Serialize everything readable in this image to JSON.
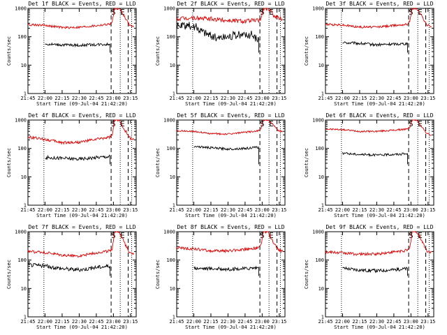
{
  "figure": {
    "background": "#ffffff",
    "axis_color": "#000000",
    "series_colors": {
      "events": "#000000",
      "lld": "#e00000"
    }
  },
  "chart_data": [
    {
      "type": "line",
      "title": "Det 1f BLACK = Events, RED = LLD",
      "xlabel": "Start Time (09-Jul-04 21:42:20)",
      "ylabel": "Counts/sec",
      "y_scale": "log",
      "ylim": [
        1,
        1000
      ],
      "xlim": [
        "21:45",
        "23:20"
      ],
      "x_ticks": [
        "21:45",
        "22:00",
        "22:15",
        "22:30",
        "22:45",
        "23:00",
        "23:15"
      ],
      "y_ticks": [
        "1",
        "10",
        "100",
        "1000"
      ],
      "markers": {
        "start": "S",
        "end": "E"
      },
      "marker_times": {
        "s": "23:00",
        "e": "23:08",
        "end_dashes": [
          "22:58",
          "23:13"
        ],
        "dotted": [
          "21:59",
          "23:06",
          "23:16"
        ]
      },
      "grid": false,
      "series": [
        {
          "key": "events",
          "x": [
            "22:00",
            "22:15",
            "22:30",
            "22:45",
            "22:57"
          ],
          "values": [
            55,
            52,
            50,
            53,
            55
          ],
          "noise": 0.05
        },
        {
          "key": "lld",
          "x": [
            "21:45",
            "22:00",
            "22:15",
            "22:30",
            "22:45",
            "22:57",
            "22:59",
            "23:01",
            "23:05",
            "23:10",
            "23:14",
            "23:18"
          ],
          "values": [
            270,
            255,
            210,
            215,
            245,
            280,
            330,
            1000,
            1000,
            500,
            260,
            220
          ],
          "noise": 0.04
        }
      ]
    },
    {
      "type": "line",
      "title": "Det 2f BLACK = Events, RED = LLD",
      "xlabel": "Start Time (09-Jul-04 21:42:20)",
      "ylabel": "Counts/sec",
      "y_scale": "log",
      "ylim": [
        1,
        1000
      ],
      "xlim": [
        "21:45",
        "23:20"
      ],
      "x_ticks": [
        "21:45",
        "22:00",
        "22:15",
        "22:30",
        "22:45",
        "23:00",
        "23:15"
      ],
      "y_ticks": [
        "1",
        "10",
        "100",
        "1000"
      ],
      "markers": {
        "start": "S",
        "end": "E"
      },
      "marker_times": {
        "s": "23:00",
        "e": "23:08",
        "end_dashes": [
          "22:58",
          "23:13"
        ],
        "dotted": [
          "21:59",
          "23:06",
          "23:16"
        ]
      },
      "grid": false,
      "series": [
        {
          "key": "events",
          "x": [
            "21:45",
            "22:00",
            "22:10",
            "22:20",
            "22:35",
            "22:50",
            "22:57"
          ],
          "values": [
            230,
            240,
            140,
            90,
            110,
            120,
            80
          ],
          "noise": 0.15
        },
        {
          "key": "lld",
          "x": [
            "21:45",
            "22:00",
            "22:15",
            "22:30",
            "22:45",
            "22:57",
            "22:59",
            "23:01",
            "23:05",
            "23:10",
            "23:14",
            "23:18"
          ],
          "values": [
            420,
            460,
            420,
            380,
            360,
            380,
            430,
            1000,
            1000,
            600,
            480,
            420
          ],
          "noise": 0.08
        }
      ]
    },
    {
      "type": "line",
      "title": "Det 3f BLACK = Events, RED = LLD",
      "xlabel": "Start Time (09-Jul-04 21:42:20)",
      "ylabel": "Counts/sec",
      "y_scale": "log",
      "ylim": [
        1,
        1000
      ],
      "xlim": [
        "21:45",
        "23:20"
      ],
      "x_ticks": [
        "21:45",
        "22:00",
        "22:15",
        "22:30",
        "22:45",
        "23:00",
        "23:15"
      ],
      "y_ticks": [
        "1",
        "10",
        "100",
        "1000"
      ],
      "markers": {
        "start": "S",
        "end": "E"
      },
      "marker_times": {
        "s": "23:00",
        "e": "23:08",
        "end_dashes": [
          "22:58",
          "23:13"
        ],
        "dotted": [
          "21:59",
          "23:06",
          "23:16"
        ]
      },
      "grid": false,
      "series": [
        {
          "key": "events",
          "x": [
            "22:00",
            "22:15",
            "22:30",
            "22:45",
            "22:57"
          ],
          "values": [
            62,
            58,
            52,
            55,
            58
          ],
          "noise": 0.05
        },
        {
          "key": "lld",
          "x": [
            "21:45",
            "22:00",
            "22:15",
            "22:30",
            "22:45",
            "22:57",
            "22:59",
            "23:01",
            "23:05",
            "23:10",
            "23:14",
            "23:18"
          ],
          "values": [
            270,
            260,
            220,
            220,
            250,
            280,
            340,
            1000,
            1000,
            500,
            260,
            230
          ],
          "noise": 0.04
        }
      ]
    },
    {
      "type": "line",
      "title": "Det 4f BLACK = Events, RED = LLD",
      "xlabel": "Start Time (09-Jul-04 21:42:20)",
      "ylabel": "Counts/sec",
      "y_scale": "log",
      "ylim": [
        1,
        1000
      ],
      "xlim": [
        "21:45",
        "23:20"
      ],
      "x_ticks": [
        "21:45",
        "22:00",
        "22:15",
        "22:30",
        "22:45",
        "23:00",
        "23:15"
      ],
      "y_ticks": [
        "1",
        "10",
        "100",
        "1000"
      ],
      "markers": {
        "start": "S",
        "end": "E"
      },
      "marker_times": {
        "s": "23:00",
        "e": "23:08",
        "end_dashes": [
          "22:58",
          "23:13"
        ],
        "dotted": [
          "21:59",
          "23:06",
          "23:16"
        ]
      },
      "grid": false,
      "series": [
        {
          "key": "events",
          "x": [
            "22:00",
            "22:15",
            "22:30",
            "22:45",
            "22:57"
          ],
          "values": [
            48,
            45,
            42,
            48,
            52
          ],
          "noise": 0.06
        },
        {
          "key": "lld",
          "x": [
            "21:45",
            "22:00",
            "22:15",
            "22:30",
            "22:45",
            "22:57",
            "22:59",
            "23:01",
            "23:05",
            "23:10",
            "23:14",
            "23:18"
          ],
          "values": [
            250,
            210,
            160,
            165,
            210,
            250,
            300,
            1000,
            1000,
            450,
            240,
            200
          ],
          "noise": 0.05
        }
      ]
    },
    {
      "type": "line",
      "title": "Det 5f BLACK = Events, RED = LLD",
      "xlabel": "Start Time (09-Jul-04 21:42:20)",
      "ylabel": "Counts/sec",
      "y_scale": "log",
      "ylim": [
        1,
        1000
      ],
      "xlim": [
        "21:45",
        "23:20"
      ],
      "x_ticks": [
        "21:45",
        "22:00",
        "22:15",
        "22:30",
        "22:45",
        "23:00",
        "23:15"
      ],
      "y_ticks": [
        "1",
        "10",
        "100",
        "1000"
      ],
      "markers": {
        "start": "S",
        "end": "E"
      },
      "marker_times": {
        "s": "23:00",
        "e": "23:08",
        "end_dashes": [
          "22:58",
          "23:13"
        ],
        "dotted": [
          "21:59",
          "23:06",
          "23:16"
        ]
      },
      "grid": false,
      "series": [
        {
          "key": "events",
          "x": [
            "22:00",
            "22:15",
            "22:30",
            "22:45",
            "22:57"
          ],
          "values": [
            118,
            105,
            95,
            100,
            110
          ],
          "noise": 0.04
        },
        {
          "key": "lld",
          "x": [
            "21:45",
            "22:00",
            "22:15",
            "22:30",
            "22:45",
            "22:57",
            "22:59",
            "23:01",
            "23:05",
            "23:10",
            "23:14",
            "23:18"
          ],
          "values": [
            420,
            400,
            330,
            320,
            370,
            420,
            500,
            1000,
            1000,
            650,
            430,
            380
          ],
          "noise": 0.03
        }
      ]
    },
    {
      "type": "line",
      "title": "Det 6f BLACK = Events, RED = LLD",
      "xlabel": "Start Time (09-Jul-04 21:42:20)",
      "ylabel": "Counts/sec",
      "y_scale": "log",
      "ylim": [
        1,
        1000
      ],
      "xlim": [
        "21:45",
        "23:20"
      ],
      "x_ticks": [
        "21:45",
        "22:00",
        "22:15",
        "22:30",
        "22:45",
        "23:00",
        "23:15"
      ],
      "y_ticks": [
        "1",
        "10",
        "100",
        "1000"
      ],
      "markers": {
        "start": "S",
        "end": "E"
      },
      "marker_times": {
        "s": "23:00",
        "e": "23:08",
        "end_dashes": [
          "22:58",
          "23:13"
        ],
        "dotted": [
          "21:59",
          "23:06",
          "23:16"
        ]
      },
      "grid": false,
      "series": [
        {
          "key": "events",
          "x": [
            "22:00",
            "22:15",
            "22:30",
            "22:45",
            "22:57"
          ],
          "values": [
            68,
            62,
            58,
            62,
            65
          ],
          "noise": 0.04
        },
        {
          "key": "lld",
          "x": [
            "21:45",
            "22:00",
            "22:15",
            "22:30",
            "22:45",
            "22:57",
            "22:59",
            "23:01",
            "23:05",
            "23:10",
            "23:14",
            "23:18"
          ],
          "values": [
            480,
            460,
            400,
            400,
            440,
            480,
            560,
            1000,
            1000,
            550,
            330,
            290
          ],
          "noise": 0.03
        }
      ]
    },
    {
      "type": "line",
      "title": "Det 7f BLACK = Events, RED = LLD",
      "xlabel": "Start Time (09-Jul-04 21:42:20)",
      "ylabel": "Counts/sec",
      "y_scale": "log",
      "ylim": [
        1,
        1000
      ],
      "xlim": [
        "21:45",
        "23:20"
      ],
      "x_ticks": [
        "21:45",
        "22:00",
        "22:15",
        "22:30",
        "22:45",
        "23:00",
        "23:15"
      ],
      "y_ticks": [
        "1",
        "10",
        "100",
        "1000"
      ],
      "markers": {
        "start": "S",
        "end": "E"
      },
      "marker_times": {
        "s": "23:00",
        "e": "23:08",
        "end_dashes": [
          "22:58",
          "23:13"
        ],
        "dotted": [
          "21:59",
          "23:06",
          "23:16"
        ]
      },
      "grid": false,
      "series": [
        {
          "key": "events",
          "x": [
            "21:45",
            "22:00",
            "22:15",
            "22:30",
            "22:45",
            "22:57"
          ],
          "values": [
            68,
            62,
            50,
            45,
            55,
            62
          ],
          "noise": 0.07
        },
        {
          "key": "lld",
          "x": [
            "21:45",
            "22:00",
            "22:15",
            "22:30",
            "22:45",
            "22:57",
            "22:59",
            "23:01",
            "23:05",
            "23:10",
            "23:14",
            "23:18"
          ],
          "values": [
            200,
            185,
            145,
            140,
            180,
            210,
            260,
            1000,
            1000,
            380,
            195,
            170
          ],
          "noise": 0.05
        }
      ]
    },
    {
      "type": "line",
      "title": "Det 8f BLACK = Events, RED = LLD",
      "xlabel": "Start Time (09-Jul-04 21:42:20)",
      "ylabel": "Counts/sec",
      "y_scale": "log",
      "ylim": [
        1,
        1000
      ],
      "xlim": [
        "21:45",
        "23:20"
      ],
      "x_ticks": [
        "21:45",
        "22:00",
        "22:15",
        "22:30",
        "22:45",
        "23:00",
        "23:15"
      ],
      "y_ticks": [
        "1",
        "10",
        "100",
        "1000"
      ],
      "markers": {
        "start": "S",
        "end": "E"
      },
      "marker_times": {
        "s": "23:00",
        "e": "23:08",
        "end_dashes": [
          "22:58",
          "23:13"
        ],
        "dotted": [
          "21:59",
          "23:06",
          "23:16"
        ]
      },
      "grid": false,
      "series": [
        {
          "key": "events",
          "x": [
            "22:00",
            "22:15",
            "22:30",
            "22:45",
            "22:57"
          ],
          "values": [
            52,
            50,
            48,
            50,
            55
          ],
          "noise": 0.06
        },
        {
          "key": "lld",
          "x": [
            "21:45",
            "22:00",
            "22:15",
            "22:30",
            "22:45",
            "22:57",
            "22:59",
            "23:01",
            "23:05",
            "23:10",
            "23:14",
            "23:18"
          ],
          "values": [
            270,
            250,
            210,
            210,
            240,
            270,
            330,
            1000,
            1000,
            400,
            230,
            200
          ],
          "noise": 0.05
        }
      ]
    },
    {
      "type": "line",
      "title": "Det 9f BLACK = Events, RED = LLD",
      "xlabel": "Start Time (09-Jul-04 21:42:20)",
      "ylabel": "Counts/sec",
      "y_scale": "log",
      "ylim": [
        1,
        1000
      ],
      "xlim": [
        "21:45",
        "23:20"
      ],
      "x_ticks": [
        "21:45",
        "22:00",
        "22:15",
        "22:30",
        "22:45",
        "23:00",
        "23:15"
      ],
      "y_ticks": [
        "1",
        "10",
        "100",
        "1000"
      ],
      "markers": {
        "start": "S",
        "end": "E"
      },
      "marker_times": {
        "s": "23:00",
        "e": "23:08",
        "end_dashes": [
          "22:58",
          "23:13"
        ],
        "dotted": [
          "21:59",
          "23:06",
          "23:16"
        ]
      },
      "grid": false,
      "series": [
        {
          "key": "events",
          "x": [
            "22:00",
            "22:15",
            "22:30",
            "22:45",
            "22:57"
          ],
          "values": [
            52,
            45,
            42,
            46,
            50
          ],
          "noise": 0.06
        },
        {
          "key": "lld",
          "x": [
            "21:45",
            "22:00",
            "22:15",
            "22:30",
            "22:45",
            "22:57",
            "22:59",
            "23:01",
            "23:05",
            "23:10",
            "23:14",
            "23:18"
          ],
          "values": [
            190,
            180,
            160,
            165,
            195,
            220,
            260,
            1000,
            1000,
            450,
            210,
            190
          ],
          "noise": 0.05
        }
      ]
    }
  ]
}
